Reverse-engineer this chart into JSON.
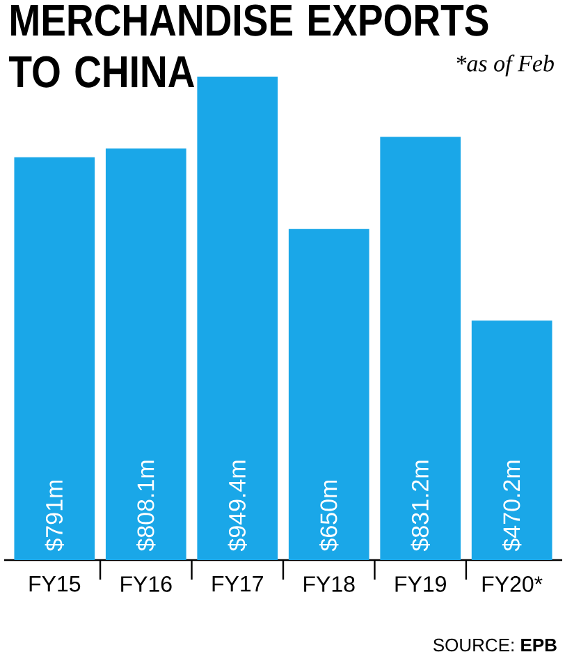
{
  "chart_data": {
    "type": "bar",
    "title": "MERCHANDISE EXPORTS TO CHINA",
    "categories": [
      "FY15",
      "FY16",
      "FY17",
      "FY18",
      "FY19",
      "FY20*"
    ],
    "values": [
      791,
      808.1,
      949.4,
      650,
      831.2,
      470.2
    ],
    "value_labels": [
      "$791m",
      "$808.1m",
      "$949.4m",
      "$650m",
      "$831.2m",
      "$470.2m"
    ],
    "color": "#1aa7e8",
    "annotations": [
      "*as of Feb",
      "SOURCE: **EPB**"
    ]
  }
}
